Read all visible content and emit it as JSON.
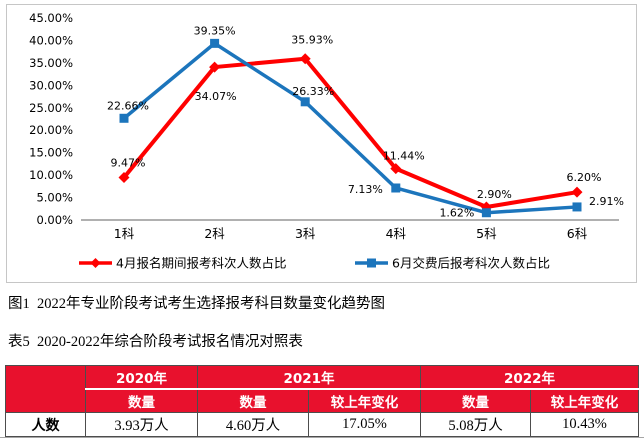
{
  "figure_caption": "图1  2022年专业阶段考试考生选择报考科目数量变化趋势图",
  "table_caption": "表5  2020-2022年综合阶段考试报名情况对照表",
  "chart_data": {
    "type": "line",
    "title": "",
    "categories": [
      "1科",
      "2科",
      "3科",
      "4科",
      "5科",
      "6科"
    ],
    "series": [
      {
        "name": "4月报名期间报考科次人数占比",
        "color": "#ff0000",
        "marker": "diamond",
        "values": [
          9.47,
          34.07,
          35.93,
          11.44,
          2.9,
          6.2
        ],
        "labels": [
          "9.47%",
          "34.07%",
          "35.93%",
          "11.44%",
          "2.90%",
          "6.20%"
        ]
      },
      {
        "name": "6月交费后报考科次人数占比",
        "color": "#1c75bc",
        "marker": "square",
        "values": [
          22.66,
          39.35,
          26.33,
          7.13,
          1.62,
          2.91
        ],
        "labels": [
          "22.66%",
          "39.35%",
          "26.33%",
          "7.13%",
          "1.62%",
          "2.91%"
        ]
      }
    ],
    "ylim": [
      0,
      45
    ],
    "ytick_values": [
      0,
      5,
      10,
      15,
      20,
      25,
      30,
      35,
      40,
      45
    ],
    "ytick_labels": [
      "0.00%",
      "5.00%",
      "10.00%",
      "15.00%",
      "20.00%",
      "25.00%",
      "30.00%",
      "35.00%",
      "40.00%",
      "45.00%"
    ],
    "grid": false,
    "legend_position": "bottom",
    "axis_color": "#808080",
    "border_color": "#c6c6c6",
    "label_color": "#000000"
  },
  "table": {
    "header_bg": "#e8112d",
    "header_text_color": "#ffffff",
    "corner_label": "",
    "year_groups": [
      {
        "label": "2020年",
        "span": 1
      },
      {
        "label": "2021年",
        "span": 2
      },
      {
        "label": "2022年",
        "span": 2
      }
    ],
    "subheaders": [
      "数量",
      "数量",
      "较上年变化",
      "数量",
      "较上年变化"
    ],
    "rows": [
      {
        "label": "人数",
        "values": [
          "3.93万人",
          "4.60万人",
          "17.05%",
          "5.08万人",
          "10.43%"
        ]
      }
    ]
  }
}
